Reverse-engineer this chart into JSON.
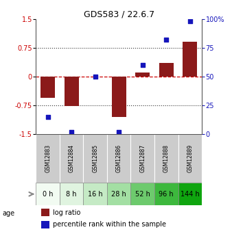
{
  "title": "GDS583 / 22.6.7",
  "samples": [
    "GSM12883",
    "GSM12884",
    "GSM12885",
    "GSM12886",
    "GSM12887",
    "GSM12888",
    "GSM12889"
  ],
  "ages": [
    "0 h",
    "8 h",
    "16 h",
    "28 h",
    "52 h",
    "96 h",
    "144 h"
  ],
  "log_ratios": [
    -0.55,
    -0.77,
    0.0,
    -1.05,
    0.1,
    0.35,
    0.9
  ],
  "percentiles": [
    15,
    2,
    50,
    2,
    60,
    82,
    98
  ],
  "ylim_left": [
    -1.5,
    1.5
  ],
  "ylim_right": [
    0,
    100
  ],
  "yticks_left": [
    -1.5,
    -0.75,
    0,
    0.75,
    1.5
  ],
  "ytick_labels_left": [
    "-1.5",
    "-0.75",
    "0",
    "0.75",
    "1.5"
  ],
  "yticks_right": [
    0,
    25,
    50,
    75,
    100
  ],
  "ytick_labels_right": [
    "0",
    "25",
    "50",
    "75",
    "100%"
  ],
  "bar_color": "#8B1A1A",
  "dot_color": "#1515bb",
  "hline_color": "#CC0000",
  "dotted_color": "#333333",
  "age_colors": [
    "#f0faf0",
    "#ddf3dd",
    "#bbebb b",
    "#99e099",
    "#66cc66",
    "#44bb44",
    "#22aa22"
  ],
  "age_colors2": [
    "#f2fbf2",
    "#e0f5e0",
    "#c8ecc8",
    "#a8e0a8",
    "#77cc77",
    "#44bb44",
    "#22aa22"
  ],
  "sample_box_color": "#cccccc",
  "legend_items": [
    "log ratio",
    "percentile rank within the sample"
  ],
  "legend_colors": [
    "#8B1A1A",
    "#1515bb"
  ]
}
